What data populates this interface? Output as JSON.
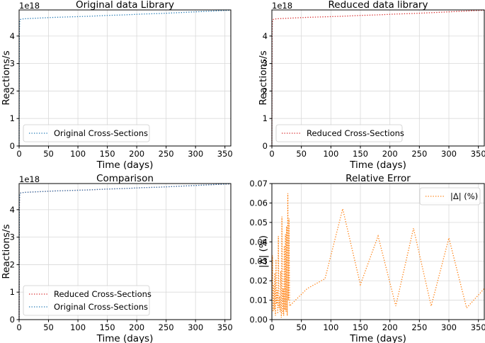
{
  "colors": {
    "original": "#1f77b4",
    "reduced": "#d62728",
    "error": "#ff7f0e"
  },
  "chart_data": [
    {
      "type": "line",
      "title": "Original data Library",
      "xlabel": "Time (days)",
      "ylabel": "Reactions/s",
      "offset_text": "1e18",
      "xlim": [
        0,
        360
      ],
      "ylim": [
        0,
        4.95
      ],
      "xticks": [
        0,
        50,
        100,
        150,
        200,
        250,
        300,
        350
      ],
      "yticks": [
        0,
        1,
        2,
        3,
        4
      ],
      "grid": true,
      "legend_loc": "lower-left",
      "series": [
        {
          "name": "Original Cross-Sections",
          "color": "#1f77b4",
          "style": "dotted",
          "x": [
            0,
            0.5,
            1,
            2,
            3,
            5,
            10,
            30,
            60,
            90,
            120,
            150,
            180,
            210,
            240,
            270,
            300,
            330,
            360
          ],
          "y": [
            0,
            4.2,
            4.55,
            4.6,
            4.61,
            4.62,
            4.63,
            4.65,
            4.68,
            4.7,
            4.72,
            4.75,
            4.77,
            4.8,
            4.82,
            4.85,
            4.88,
            4.91,
            4.94
          ]
        }
      ]
    },
    {
      "type": "line",
      "title": "Reduced data library",
      "xlabel": "Time (days)",
      "ylabel": "Reactions/s",
      "offset_text": "1e18",
      "xlim": [
        0,
        360
      ],
      "ylim": [
        0,
        4.95
      ],
      "xticks": [
        0,
        50,
        100,
        150,
        200,
        250,
        300,
        350
      ],
      "yticks": [
        0,
        1,
        2,
        3,
        4
      ],
      "grid": true,
      "legend_loc": "lower-left",
      "series": [
        {
          "name": "Reduced Cross-Sections",
          "color": "#d62728",
          "style": "dotted",
          "x": [
            0,
            0.5,
            1,
            2,
            3,
            5,
            10,
            30,
            60,
            90,
            120,
            150,
            180,
            210,
            240,
            270,
            300,
            330,
            360
          ],
          "y": [
            0,
            4.2,
            4.55,
            4.6,
            4.61,
            4.62,
            4.63,
            4.65,
            4.68,
            4.7,
            4.72,
            4.75,
            4.77,
            4.8,
            4.82,
            4.85,
            4.88,
            4.91,
            4.94
          ]
        }
      ]
    },
    {
      "type": "line",
      "title": "Comparison",
      "xlabel": "Time (days)",
      "ylabel": "Reactions/s",
      "offset_text": "1e18",
      "xlim": [
        0,
        360
      ],
      "ylim": [
        0,
        4.95
      ],
      "xticks": [
        0,
        50,
        100,
        150,
        200,
        250,
        300,
        350
      ],
      "yticks": [
        0,
        1,
        2,
        3,
        4
      ],
      "grid": true,
      "legend_loc": "lower-left",
      "series": [
        {
          "name": "Reduced Cross-Sections",
          "color": "#d62728",
          "style": "dotted",
          "x": [
            0,
            0.5,
            1,
            2,
            3,
            5,
            10,
            30,
            60,
            90,
            120,
            150,
            180,
            210,
            240,
            270,
            300,
            330,
            360
          ],
          "y": [
            0,
            4.2,
            4.55,
            4.6,
            4.61,
            4.62,
            4.63,
            4.65,
            4.68,
            4.7,
            4.72,
            4.75,
            4.77,
            4.8,
            4.82,
            4.85,
            4.88,
            4.91,
            4.94
          ]
        },
        {
          "name": "Original Cross-Sections",
          "color": "#1f77b4",
          "style": "dotted",
          "x": [
            0,
            0.5,
            1,
            2,
            3,
            5,
            10,
            30,
            60,
            90,
            120,
            150,
            180,
            210,
            240,
            270,
            300,
            330,
            360
          ],
          "y": [
            0,
            4.2,
            4.55,
            4.6,
            4.61,
            4.62,
            4.63,
            4.65,
            4.68,
            4.7,
            4.72,
            4.75,
            4.77,
            4.8,
            4.82,
            4.85,
            4.88,
            4.91,
            4.94
          ]
        }
      ]
    },
    {
      "type": "line",
      "title": "Relative Error",
      "xlabel": "Time (days)",
      "ylabel": "|Δ| (%)",
      "offset_text": "",
      "xlim": [
        0,
        360
      ],
      "ylim": [
        0,
        0.07
      ],
      "xticks": [
        0,
        50,
        100,
        150,
        200,
        250,
        300,
        350
      ],
      "yticks": [
        0,
        0.01,
        0.02,
        0.03,
        0.04,
        0.05,
        0.06,
        0.07
      ],
      "ytick_labels": [
        "0.00",
        "0.01",
        "0.02",
        "0.03",
        "0.04",
        "0.05",
        "0.06",
        "0.07"
      ],
      "grid": true,
      "legend_loc": "upper-right",
      "series": [
        {
          "name": "|Δ| (%)",
          "color": "#ff7f0e",
          "style": "dotted",
          "x": [
            0,
            1,
            2,
            3,
            4,
            5,
            6,
            7,
            8,
            9,
            10,
            11,
            12,
            13,
            14,
            15,
            16,
            17,
            18,
            19,
            20,
            21,
            22,
            23,
            24,
            25,
            26,
            27,
            28,
            29,
            30,
            60,
            90,
            120,
            150,
            180,
            210,
            240,
            270,
            300,
            330,
            360
          ],
          "y": [
            0.01,
            0.033,
            0.004,
            0.018,
            0.005,
            0.024,
            0.002,
            0.031,
            0.008,
            0.015,
            0.003,
            0.043,
            0.006,
            0.012,
            0.004,
            0.025,
            0.001,
            0.053,
            0.003,
            0.016,
            0.002,
            0.038,
            0.005,
            0.044,
            0.004,
            0.048,
            0.002,
            0.065,
            0.01,
            0.052,
            0.007,
            0.016,
            0.021,
            0.057,
            0.018,
            0.043,
            0.007,
            0.047,
            0.007,
            0.042,
            0.006,
            0.016
          ]
        }
      ]
    }
  ]
}
